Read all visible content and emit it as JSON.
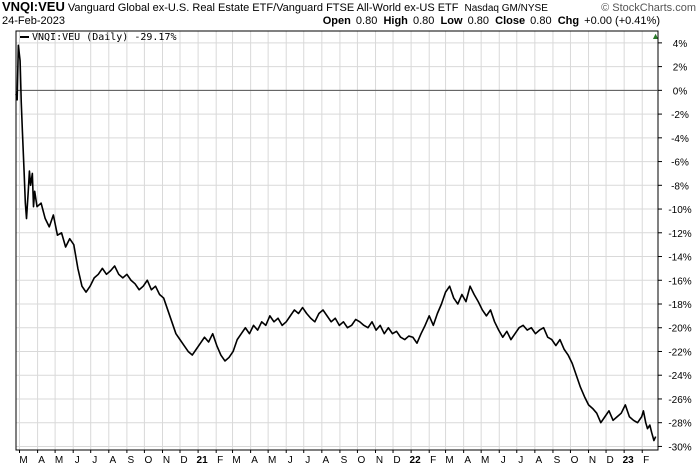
{
  "header": {
    "symbol": "VNQI:VEU",
    "name": "Vanguard Global ex-U.S. Real Estate ETF/Vanguard FTSE All-World ex-US ETF",
    "exchange": "Nasdaq GM/NYSE",
    "brand": "© StockCharts.com",
    "date": "24-Feb-2023",
    "open_label": "Open",
    "open": "0.80",
    "high_label": "High",
    "high": "0.80",
    "low_label": "Low",
    "low": "0.80",
    "close_label": "Close",
    "close": "0.80",
    "chg_label": "Chg",
    "chg": "+0.00 (+0.41%)",
    "chg_icon": "triangle-up-icon"
  },
  "chart_data": {
    "type": "line",
    "legend": "VNQI:VEU (Daily) -29.17%",
    "legend_position": "top-left",
    "series": [
      {
        "name": "VNQI:VEU (Daily)",
        "color": "#000000",
        "points": [
          [
            "2020-02-24",
            -0.3
          ],
          [
            "2020-02-26",
            -0.8
          ],
          [
            "2020-02-28",
            3.8
          ],
          [
            "2020-03-02",
            2.5
          ],
          [
            "2020-03-04",
            -1.0
          ],
          [
            "2020-03-06",
            -3.5
          ],
          [
            "2020-03-09",
            -7.0
          ],
          [
            "2020-03-11",
            -9.5
          ],
          [
            "2020-03-13",
            -10.8
          ],
          [
            "2020-03-16",
            -8.5
          ],
          [
            "2020-03-18",
            -6.8
          ],
          [
            "2020-03-20",
            -8.0
          ],
          [
            "2020-03-23",
            -7.0
          ],
          [
            "2020-03-25",
            -9.8
          ],
          [
            "2020-03-27",
            -8.5
          ],
          [
            "2020-03-31",
            -9.8
          ],
          [
            "2020-04-07",
            -9.5
          ],
          [
            "2020-04-14",
            -10.8
          ],
          [
            "2020-04-21",
            -11.5
          ],
          [
            "2020-04-28",
            -10.5
          ],
          [
            "2020-05-05",
            -12.2
          ],
          [
            "2020-05-12",
            -12.0
          ],
          [
            "2020-05-19",
            -13.2
          ],
          [
            "2020-05-26",
            -12.5
          ],
          [
            "2020-06-02",
            -13.0
          ],
          [
            "2020-06-09",
            -15.0
          ],
          [
            "2020-06-16",
            -16.5
          ],
          [
            "2020-06-23",
            -17.0
          ],
          [
            "2020-06-30",
            -16.5
          ],
          [
            "2020-07-07",
            -15.8
          ],
          [
            "2020-07-14",
            -15.5
          ],
          [
            "2020-07-21",
            -15.0
          ],
          [
            "2020-07-28",
            -15.5
          ],
          [
            "2020-08-04",
            -15.2
          ],
          [
            "2020-08-11",
            -14.8
          ],
          [
            "2020-08-18",
            -15.5
          ],
          [
            "2020-08-25",
            -15.8
          ],
          [
            "2020-09-01",
            -15.5
          ],
          [
            "2020-09-08",
            -16.0
          ],
          [
            "2020-09-15",
            -16.3
          ],
          [
            "2020-09-22",
            -16.8
          ],
          [
            "2020-09-29",
            -16.5
          ],
          [
            "2020-10-06",
            -16.0
          ],
          [
            "2020-10-13",
            -16.8
          ],
          [
            "2020-10-20",
            -16.5
          ],
          [
            "2020-10-27",
            -17.2
          ],
          [
            "2020-11-03",
            -17.5
          ],
          [
            "2020-11-10",
            -18.5
          ],
          [
            "2020-11-17",
            -19.5
          ],
          [
            "2020-11-24",
            -20.5
          ],
          [
            "2020-12-01",
            -21.0
          ],
          [
            "2020-12-08",
            -21.5
          ],
          [
            "2020-12-15",
            -22.0
          ],
          [
            "2020-12-22",
            -22.3
          ],
          [
            "2020-12-29",
            -21.8
          ],
          [
            "2021-01-05",
            -21.3
          ],
          [
            "2021-01-12",
            -20.8
          ],
          [
            "2021-01-19",
            -21.2
          ],
          [
            "2021-01-26",
            -20.5
          ],
          [
            "2021-02-02",
            -21.5
          ],
          [
            "2021-02-09",
            -22.3
          ],
          [
            "2021-02-16",
            -22.8
          ],
          [
            "2021-02-23",
            -22.5
          ],
          [
            "2021-03-02",
            -22.0
          ],
          [
            "2021-03-09",
            -21.0
          ],
          [
            "2021-03-16",
            -20.5
          ],
          [
            "2021-03-23",
            -20.0
          ],
          [
            "2021-03-30",
            -20.5
          ],
          [
            "2021-04-06",
            -19.8
          ],
          [
            "2021-04-13",
            -20.2
          ],
          [
            "2021-04-20",
            -19.5
          ],
          [
            "2021-04-27",
            -19.8
          ],
          [
            "2021-05-04",
            -19.0
          ],
          [
            "2021-05-11",
            -19.5
          ],
          [
            "2021-05-18",
            -19.2
          ],
          [
            "2021-05-25",
            -19.8
          ],
          [
            "2021-06-01",
            -19.5
          ],
          [
            "2021-06-08",
            -19.0
          ],
          [
            "2021-06-15",
            -18.5
          ],
          [
            "2021-06-22",
            -18.8
          ],
          [
            "2021-06-29",
            -18.3
          ],
          [
            "2021-07-06",
            -18.8
          ],
          [
            "2021-07-13",
            -19.2
          ],
          [
            "2021-07-20",
            -19.5
          ],
          [
            "2021-07-27",
            -18.8
          ],
          [
            "2021-08-03",
            -18.5
          ],
          [
            "2021-08-10",
            -19.0
          ],
          [
            "2021-08-17",
            -19.5
          ],
          [
            "2021-08-24",
            -19.2
          ],
          [
            "2021-08-31",
            -19.8
          ],
          [
            "2021-09-07",
            -19.5
          ],
          [
            "2021-09-14",
            -20.0
          ],
          [
            "2021-09-21",
            -19.8
          ],
          [
            "2021-09-28",
            -19.3
          ],
          [
            "2021-10-05",
            -19.5
          ],
          [
            "2021-10-12",
            -19.8
          ],
          [
            "2021-10-19",
            -20.0
          ],
          [
            "2021-10-26",
            -19.5
          ],
          [
            "2021-11-02",
            -20.2
          ],
          [
            "2021-11-09",
            -19.8
          ],
          [
            "2021-11-16",
            -20.5
          ],
          [
            "2021-11-23",
            -20.0
          ],
          [
            "2021-11-30",
            -20.5
          ],
          [
            "2021-12-07",
            -20.3
          ],
          [
            "2021-12-14",
            -20.8
          ],
          [
            "2021-12-21",
            -21.0
          ],
          [
            "2021-12-28",
            -20.7
          ],
          [
            "2022-01-04",
            -20.8
          ],
          [
            "2022-01-11",
            -21.3
          ],
          [
            "2022-01-18",
            -20.5
          ],
          [
            "2022-01-25",
            -19.8
          ],
          [
            "2022-02-01",
            -19.0
          ],
          [
            "2022-02-08",
            -19.8
          ],
          [
            "2022-02-15",
            -18.8
          ],
          [
            "2022-02-22",
            -18.0
          ],
          [
            "2022-03-01",
            -17.0
          ],
          [
            "2022-03-08",
            -16.5
          ],
          [
            "2022-03-15",
            -17.5
          ],
          [
            "2022-03-22",
            -18.0
          ],
          [
            "2022-03-29",
            -17.2
          ],
          [
            "2022-04-05",
            -17.8
          ],
          [
            "2022-04-12",
            -16.5
          ],
          [
            "2022-04-19",
            -17.2
          ],
          [
            "2022-04-26",
            -17.8
          ],
          [
            "2022-05-03",
            -18.5
          ],
          [
            "2022-05-10",
            -19.0
          ],
          [
            "2022-05-17",
            -18.5
          ],
          [
            "2022-05-24",
            -19.5
          ],
          [
            "2022-05-31",
            -20.2
          ],
          [
            "2022-06-07",
            -20.8
          ],
          [
            "2022-06-14",
            -20.3
          ],
          [
            "2022-06-21",
            -21.0
          ],
          [
            "2022-06-28",
            -20.5
          ],
          [
            "2022-07-05",
            -20.0
          ],
          [
            "2022-07-12",
            -19.8
          ],
          [
            "2022-07-19",
            -20.2
          ],
          [
            "2022-07-26",
            -20.0
          ],
          [
            "2022-08-02",
            -20.5
          ],
          [
            "2022-08-09",
            -20.2
          ],
          [
            "2022-08-16",
            -20.0
          ],
          [
            "2022-08-23",
            -20.8
          ],
          [
            "2022-08-30",
            -21.0
          ],
          [
            "2022-09-06",
            -21.5
          ],
          [
            "2022-09-13",
            -21.0
          ],
          [
            "2022-09-20",
            -21.8
          ],
          [
            "2022-09-27",
            -22.3
          ],
          [
            "2022-10-04",
            -23.0
          ],
          [
            "2022-10-11",
            -24.0
          ],
          [
            "2022-10-18",
            -25.0
          ],
          [
            "2022-10-25",
            -25.8
          ],
          [
            "2022-11-01",
            -26.5
          ],
          [
            "2022-11-08",
            -26.8
          ],
          [
            "2022-11-15",
            -27.2
          ],
          [
            "2022-11-22",
            -28.0
          ],
          [
            "2022-11-29",
            -27.5
          ],
          [
            "2022-12-06",
            -27.0
          ],
          [
            "2022-12-13",
            -27.8
          ],
          [
            "2022-12-20",
            -27.5
          ],
          [
            "2022-12-27",
            -27.2
          ],
          [
            "2023-01-03",
            -26.5
          ],
          [
            "2023-01-10",
            -27.5
          ],
          [
            "2023-01-17",
            -27.8
          ],
          [
            "2023-01-24",
            -28.0
          ],
          [
            "2023-01-31",
            -27.5
          ],
          [
            "2023-02-03",
            -27.0
          ],
          [
            "2023-02-07",
            -28.0
          ],
          [
            "2023-02-10",
            -28.5
          ],
          [
            "2023-02-14",
            -28.2
          ],
          [
            "2023-02-17",
            -28.8
          ],
          [
            "2023-02-21",
            -29.5
          ],
          [
            "2023-02-24",
            -29.17
          ]
        ]
      }
    ],
    "x_start": "2020-02-24",
    "x_end": "2023-02-28",
    "x_tick_labels": [
      "M",
      "A",
      "M",
      "J",
      "J",
      "A",
      "S",
      "O",
      "N",
      "D",
      "21",
      "F",
      "M",
      "A",
      "M",
      "J",
      "J",
      "A",
      "S",
      "O",
      "N",
      "D",
      "22",
      "F",
      "M",
      "A",
      "M",
      "J",
      "J",
      "A",
      "S",
      "O",
      "N",
      "D",
      "23",
      "F"
    ],
    "x_tick_dates": [
      "2020-03-01",
      "2020-04-01",
      "2020-05-01",
      "2020-06-01",
      "2020-07-01",
      "2020-08-01",
      "2020-09-01",
      "2020-10-01",
      "2020-11-01",
      "2020-12-01",
      "2021-01-01",
      "2021-02-01",
      "2021-03-01",
      "2021-04-01",
      "2021-05-01",
      "2021-06-01",
      "2021-07-01",
      "2021-08-01",
      "2021-09-01",
      "2021-10-01",
      "2021-11-01",
      "2021-12-01",
      "2022-01-01",
      "2022-02-01",
      "2022-03-01",
      "2022-04-01",
      "2022-05-01",
      "2022-06-01",
      "2022-07-01",
      "2022-08-01",
      "2022-09-01",
      "2022-10-01",
      "2022-11-01",
      "2022-12-01",
      "2023-01-01",
      "2023-02-01"
    ],
    "y_ticks": [
      4,
      2,
      0,
      -2,
      -4,
      -6,
      -8,
      -10,
      -12,
      -14,
      -16,
      -18,
      -20,
      -22,
      -24,
      -26,
      -28,
      -30
    ],
    "y_tick_labels": [
      "4%",
      "2%",
      "0%",
      "-2%",
      "-4%",
      "-6%",
      "-8%",
      "-10%",
      "-12%",
      "-14%",
      "-16%",
      "-18%",
      "-20%",
      "-22%",
      "-24%",
      "-26%",
      "-28%",
      "-30%"
    ],
    "ylim": [
      -30.3,
      5.0
    ],
    "y_axis_position": "right",
    "grid": true,
    "zero_line": true
  }
}
